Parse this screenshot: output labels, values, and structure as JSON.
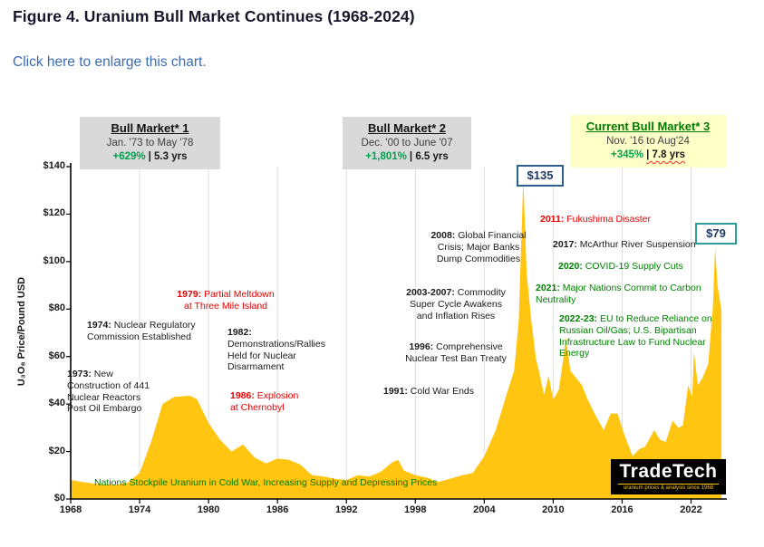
{
  "page": {
    "title": "Figure 4. Uranium Bull Market Continues (1968-2024)",
    "enlarge_link": "Click here to enlarge this chart."
  },
  "brand": {
    "name": "TradeTech",
    "tagline": "uranium prices & analysis since 1968"
  },
  "colors": {
    "area_yellow": "#FFC510",
    "link_blue": "#3A6CB4",
    "annotation_green": "#008000",
    "annotation_red": "#E60000",
    "pct_green": "#00A14F",
    "callout_navy": "#1F3864",
    "callout_135_border": "#2D5F8F",
    "callout_79_border": "#2F9E9B"
  },
  "chart_data": {
    "type": "area",
    "title": "Uranium Bull Market Continues (1968-2024)",
    "xlabel": "",
    "ylabel": "U₃O₈ Price/Pound USD",
    "x_range": [
      1968,
      2024.8
    ],
    "y_range": [
      0,
      140
    ],
    "x_ticks": [
      1968,
      1974,
      1980,
      1986,
      1992,
      1998,
      2004,
      2010,
      2016,
      2022
    ],
    "y_ticks": [
      0,
      20,
      40,
      60,
      80,
      100,
      120,
      140
    ],
    "y_tick_prefix": "$",
    "grid": "vertical-only",
    "legend": "none",
    "fill_color": "#FFC510",
    "points": [
      [
        1968,
        8
      ],
      [
        1969,
        7.2
      ],
      [
        1970,
        6.5
      ],
      [
        1971,
        6.2
      ],
      [
        1972,
        6
      ],
      [
        1973,
        7
      ],
      [
        1974,
        11
      ],
      [
        1975,
        24
      ],
      [
        1976,
        40
      ],
      [
        1977,
        43
      ],
      [
        1978.4,
        43.5
      ],
      [
        1979,
        42
      ],
      [
        1980,
        32
      ],
      [
        1981,
        25
      ],
      [
        1982,
        20
      ],
      [
        1983,
        23
      ],
      [
        1984,
        17.5
      ],
      [
        1985,
        15
      ],
      [
        1986,
        17
      ],
      [
        1987,
        16.5
      ],
      [
        1988,
        14.5
      ],
      [
        1989,
        10
      ],
      [
        1990,
        9.5
      ],
      [
        1991,
        8.5
      ],
      [
        1992,
        8
      ],
      [
        1993,
        10
      ],
      [
        1994,
        9.5
      ],
      [
        1995,
        11.5
      ],
      [
        1996,
        15.5
      ],
      [
        1996.5,
        16.5
      ],
      [
        1997,
        12
      ],
      [
        1998,
        10
      ],
      [
        1999,
        9
      ],
      [
        2000,
        7.2
      ],
      [
        2001,
        8.5
      ],
      [
        2002,
        9.9
      ],
      [
        2003,
        11
      ],
      [
        2004,
        18
      ],
      [
        2005,
        29
      ],
      [
        2006,
        45
      ],
      [
        2006.6,
        54
      ],
      [
        2007,
        75
      ],
      [
        2007.4,
        135
      ],
      [
        2007.7,
        95
      ],
      [
        2008.1,
        75
      ],
      [
        2008.5,
        59
      ],
      [
        2008.8,
        53
      ],
      [
        2009.2,
        44
      ],
      [
        2009.6,
        52
      ],
      [
        2010,
        42
      ],
      [
        2010.5,
        46
      ],
      [
        2010.9,
        60
      ],
      [
        2011.1,
        68
      ],
      [
        2011.5,
        54
      ],
      [
        2012,
        51
      ],
      [
        2012.5,
        48
      ],
      [
        2013,
        42
      ],
      [
        2013.6,
        36
      ],
      [
        2014.4,
        29
      ],
      [
        2015,
        36
      ],
      [
        2015.6,
        36
      ],
      [
        2016.2,
        27
      ],
      [
        2016.9,
        18
      ],
      [
        2017.5,
        21
      ],
      [
        2018,
        22
      ],
      [
        2018.8,
        29
      ],
      [
        2019.3,
        25
      ],
      [
        2019.8,
        24
      ],
      [
        2020.4,
        33
      ],
      [
        2020.9,
        30
      ],
      [
        2021.3,
        31
      ],
      [
        2021.75,
        48
      ],
      [
        2022.1,
        43
      ],
      [
        2022.25,
        62
      ],
      [
        2022.6,
        48
      ],
      [
        2023,
        51
      ],
      [
        2023.5,
        57
      ],
      [
        2023.9,
        81
      ],
      [
        2024.1,
        106
      ],
      [
        2024.3,
        90
      ],
      [
        2024.5,
        84
      ],
      [
        2024.65,
        79
      ]
    ],
    "bull_markets": [
      {
        "title": "Bull Market* 1",
        "dates": "Jan. '73 to May '78",
        "pct": "+629%",
        "duration": "| 5.3 yrs"
      },
      {
        "title": "Bull Market* 2",
        "dates": "Dec. '00 to June '07",
        "pct": "+1,801%",
        "duration": "| 6.5 yrs"
      },
      {
        "title": "Current Bull Market* 3",
        "dates": "Nov. '16 to Aug'24",
        "pct": "+345%",
        "duration": "| 7.8 yrs"
      }
    ],
    "price_callouts": [
      {
        "label": "$135"
      },
      {
        "label": "$79"
      }
    ],
    "annotations": [
      {
        "id": "ann-1973",
        "bold": "1973:",
        "text": "New Construction of 441 Nuclear Reactors Post Oil Embargo",
        "color": "black"
      },
      {
        "id": "ann-1974",
        "bold": "1974:",
        "text": "Nuclear Regulatory Commission Established",
        "color": "black"
      },
      {
        "id": "ann-1979",
        "bold": "1979:",
        "text": "Partial Meltdown at Three Mile Island",
        "color": "red"
      },
      {
        "id": "ann-1982",
        "bold": "1982:",
        "text": "Demonstrations/Rallies Held for Nuclear Disarmament",
        "color": "black"
      },
      {
        "id": "ann-1986",
        "bold": "1986:",
        "text": "Explosion at Chernobyl",
        "color": "red"
      },
      {
        "id": "ann-1991",
        "bold": "1991:",
        "text": "Cold War Ends",
        "color": "black"
      },
      {
        "id": "ann-1996",
        "bold": "1996:",
        "text": "Comprehensive Nuclear Test Ban Treaty",
        "color": "black"
      },
      {
        "id": "ann-2003",
        "bold": "2003-2007:",
        "text": "Commodity Super Cycle Awakens and Inflation Rises",
        "color": "black"
      },
      {
        "id": "ann-2008",
        "bold": "2008:",
        "text": "Global Financial Crisis; Major Banks Dump Commodities",
        "color": "black"
      },
      {
        "id": "ann-2011",
        "bold": "2011:",
        "text": "Fukushima Disaster",
        "color": "red"
      },
      {
        "id": "ann-2017",
        "bold": "2017:",
        "text": "McArthur River Suspension",
        "color": "black"
      },
      {
        "id": "ann-2020",
        "bold": "2020:",
        "text": "COVID-19 Supply Cuts",
        "color": "green"
      },
      {
        "id": "ann-2021",
        "bold": "2021:",
        "text": "Major Nations Commit to Carbon Neutrality",
        "color": "green"
      },
      {
        "id": "ann-2022",
        "bold": "2022-23:",
        "text": "EU to Reduce Reliance on Russian Oil/Gas; U.S. Bipartisan Infrastructure Law to Fund Nuclear Energy",
        "color": "green"
      }
    ],
    "caption": "Nations Stockpile Uranium in Cold War, Increasing Supply and Depressing Prices"
  }
}
